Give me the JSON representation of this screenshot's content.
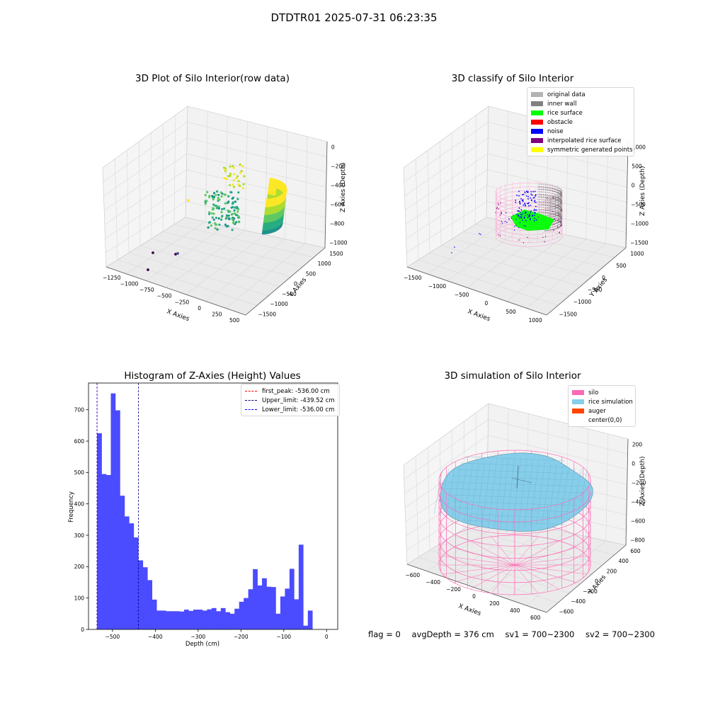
{
  "suptitle": "DTDTR01 2025-07-31 06:23:35",
  "footer": {
    "flag": "flag = 0",
    "avg_depth": "avgDepth = 376 cm",
    "sv1": "sv1 = 700~2300",
    "sv2": "sv2 = 700~2300"
  },
  "colors": {
    "original": "#b3b3b3",
    "inner_wall": "#808080",
    "rice_surface": "#00ff00",
    "obstacle": "#ff0000",
    "noise": "#0000ff",
    "interpolated": "#800080",
    "symmetric": "#ffff00",
    "silo": "#ff69b4",
    "rice_sim": "#87ceeb",
    "auger": "#ff4500",
    "hist_bar": "#4b4bff"
  },
  "chart_data": [
    {
      "type": "scatter3d",
      "title": "3D Plot of Silo Interior(row data)",
      "xlabel": "X Axies",
      "ylabel": "Y Axies",
      "zlabel": "Z Axies (Depth)",
      "x_ticks": [
        "−1250",
        "−1000",
        "−750",
        "−500",
        "−250",
        "0",
        "250",
        "500"
      ],
      "y_ticks": [
        "1500",
        "1000",
        "500",
        "0",
        "−500",
        "−1000",
        "−1500"
      ],
      "z_ticks": [
        "0",
        "−200",
        "−400",
        "−600",
        "−800",
        "−1000"
      ],
      "colormap": "viridis"
    },
    {
      "type": "scatter3d",
      "title": "3D classify of Silo Interior",
      "xlabel": "X Axies",
      "ylabel": "Y Axies",
      "zlabel": "Z Axies (Depth)",
      "x_ticks": [
        "−1500",
        "−1000",
        "−500",
        "0",
        "500",
        "1000"
      ],
      "y_ticks": [
        "1000",
        "500",
        "0",
        "−500",
        "−1000",
        "−1500"
      ],
      "z_ticks": [
        "1000",
        "500",
        "0",
        "−500",
        "−1000",
        "−1500"
      ],
      "legend": [
        {
          "label": "original data",
          "color": "#b3b3b3"
        },
        {
          "label": "inner wall",
          "color": "#808080"
        },
        {
          "label": "rice surface",
          "color": "#00ff00"
        },
        {
          "label": "obstacle",
          "color": "#ff0000"
        },
        {
          "label": "noise",
          "color": "#0000ff"
        },
        {
          "label": "interpolated rice surface",
          "color": "#800080"
        },
        {
          "label": "symmetric generated points",
          "color": "#ffff00"
        }
      ],
      "legend_position": "top-right"
    },
    {
      "type": "bar",
      "title": "Histogram of Z-Axies (Height) Values",
      "xlabel": "Depth (cm)",
      "ylabel": "Frequency",
      "xlim": [
        -556,
        26
      ],
      "ylim": [
        0,
        785
      ],
      "x_ticks": [
        -500,
        -400,
        -300,
        -200,
        -100,
        0
      ],
      "y_ticks": [
        0,
        100,
        200,
        300,
        400,
        500,
        600,
        700
      ],
      "bin_width": 10.7,
      "bin_start": -536,
      "values": [
        625,
        495,
        492,
        752,
        698,
        426,
        360,
        338,
        293,
        220,
        198,
        157,
        95,
        60,
        60,
        58,
        58,
        58,
        57,
        63,
        59,
        63,
        63,
        60,
        64,
        68,
        58,
        68,
        55,
        50,
        66,
        88,
        100,
        128,
        192,
        140,
        163,
        136,
        135,
        50,
        105,
        130,
        193,
        96,
        270,
        12,
        60
      ],
      "vlines": [
        {
          "label": "first_peak: -536.00 cm",
          "x": -536,
          "color": "#ff0000"
        },
        {
          "label": "Upper_limit: -439.52 cm",
          "x": -439.52,
          "color": "#00008b"
        },
        {
          "label": "Lower_limit: -536.00 cm",
          "x": -536,
          "color": "#0000ff"
        }
      ],
      "legend_position": "top-right"
    },
    {
      "type": "surface3d",
      "title": "3D simulation of Silo Interior",
      "xlabel": "X Axies",
      "ylabel": "Y Axies",
      "zlabel": "Z Axies (Depth)",
      "x_ticks": [
        "−600",
        "−400",
        "−200",
        "0",
        "200",
        "400",
        "600"
      ],
      "y_ticks": [
        "600",
        "400",
        "200",
        "0",
        "−200",
        "−400",
        "−600"
      ],
      "z_ticks": [
        "200",
        "0",
        "−200",
        "−400",
        "−600",
        "−800"
      ],
      "legend": [
        {
          "label": "silo",
          "color": "#ff69b4"
        },
        {
          "label": "rice simulation",
          "color": "#87ceeb"
        },
        {
          "label": "auger",
          "color": "#ff4500"
        },
        {
          "label": "center(0,0)",
          "color": ""
        }
      ],
      "legend_position": "top-right"
    }
  ]
}
